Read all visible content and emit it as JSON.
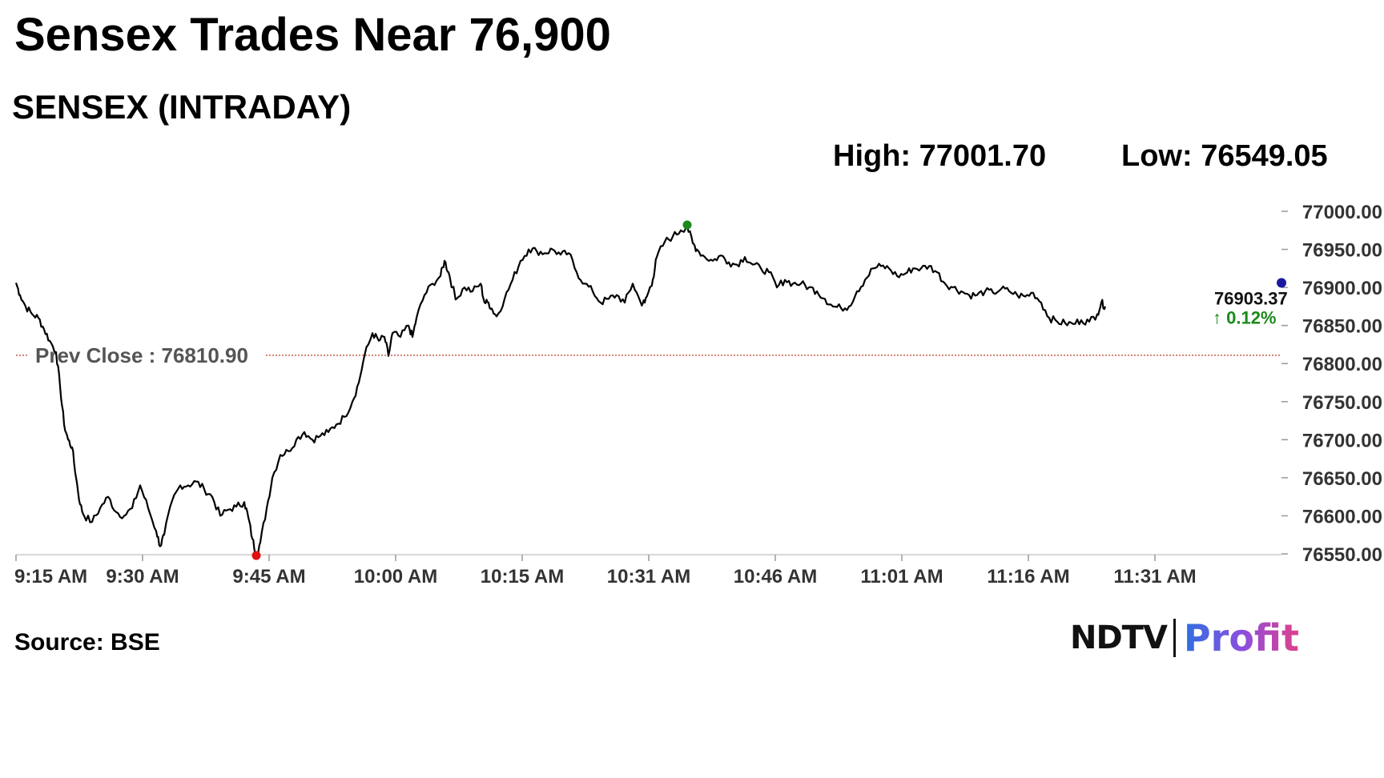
{
  "headline": "Sensex Trades Near 76,900",
  "subtitle": "SENSEX (INTRADAY)",
  "stats": {
    "high": "High: 77001.70",
    "low": "Low: 76549.05"
  },
  "source": "Source: BSE",
  "logo": {
    "ndtv": "NDTV",
    "profit": "Profit"
  },
  "chart_data": {
    "type": "line",
    "title": "SENSEX (INTRADAY)",
    "x_tick_labels": [
      "9:15 AM",
      "9:30 AM",
      "9:45 AM",
      "10:00 AM",
      "10:15 AM",
      "10:31 AM",
      "10:46 AM",
      "11:01 AM",
      "11:16 AM",
      "11:31 AM"
    ],
    "y_tick_labels": [
      "77000.00",
      "76950.00",
      "76900.00",
      "76850.00",
      "76800.00",
      "76750.00",
      "76700.00",
      "76650.00",
      "76600.00",
      "76550.00"
    ],
    "ylim": [
      76550,
      77000
    ],
    "reference_line": {
      "label": "Prev Close : 76810.90",
      "value": 76810.9,
      "color": "#c0392b"
    },
    "last_value_label": "76903.37",
    "change_label": "↑ 0.12%",
    "grid": false,
    "line_color": "#000000",
    "high_marker": {
      "value": 76980,
      "color": "#1a8a1a"
    },
    "low_marker": {
      "value": 76551,
      "color": "#e01010"
    },
    "current_marker_color": "#1a1aa0",
    "change_color": "#1a8a1a",
    "series": [
      {
        "values": [
          [
            0,
            76906
          ],
          [
            0.5,
            76890
          ],
          [
            1.2,
            76875
          ],
          [
            2,
            76865
          ],
          [
            2.8,
            76860
          ],
          [
            3.5,
            76845
          ],
          [
            4.2,
            76830
          ],
          [
            5,
            76815
          ],
          [
            5.5,
            76770
          ],
          [
            6,
            76720
          ],
          [
            6.5,
            76700
          ],
          [
            7,
            76690
          ],
          [
            7.5,
            76650
          ],
          [
            8,
            76615
          ],
          [
            8.5,
            76600
          ],
          [
            9.5,
            76592
          ],
          [
            10.5,
            76610
          ],
          [
            11.5,
            76625
          ],
          [
            12.5,
            76605
          ],
          [
            13.5,
            76600
          ],
          [
            14.5,
            76610
          ],
          [
            15.5,
            76640
          ],
          [
            16.5,
            76610
          ],
          [
            17.5,
            76580
          ],
          [
            18,
            76560
          ],
          [
            18.5,
            76575
          ],
          [
            19.5,
            76620
          ],
          [
            20.5,
            76640
          ],
          [
            21.5,
            76640
          ],
          [
            22.5,
            76645
          ],
          [
            23.5,
            76635
          ],
          [
            24.5,
            76625
          ],
          [
            25.5,
            76600
          ],
          [
            26.5,
            76608
          ],
          [
            27.5,
            76612
          ],
          [
            28.5,
            76618
          ],
          [
            29,
            76598
          ],
          [
            29.5,
            76570
          ],
          [
            30,
            76549
          ],
          [
            30.5,
            76565
          ],
          [
            31.3,
            76610
          ],
          [
            32,
            76650
          ],
          [
            33,
            76680
          ],
          [
            34,
            76685
          ],
          [
            35,
            76700
          ],
          [
            36,
            76710
          ],
          [
            37,
            76700
          ],
          [
            38,
            76705
          ],
          [
            39,
            76710
          ],
          [
            40,
            76720
          ],
          [
            41,
            76730
          ],
          [
            42,
            76750
          ],
          [
            42.8,
            76775
          ],
          [
            43.5,
            76810
          ],
          [
            44.5,
            76840
          ],
          [
            45.3,
            76830
          ],
          [
            46,
            76835
          ],
          [
            46.5,
            76810
          ],
          [
            47,
            76840
          ],
          [
            48,
            76835
          ],
          [
            49,
            76850
          ],
          [
            49.5,
            76835
          ],
          [
            50,
            76860
          ],
          [
            51,
            76890
          ],
          [
            52,
            76905
          ],
          [
            53,
            76915
          ],
          [
            53.5,
            76935
          ],
          [
            54,
            76920
          ],
          [
            54.5,
            76900
          ],
          [
            55,
            76885
          ],
          [
            56,
            76900
          ],
          [
            57,
            76895
          ],
          [
            58,
            76905
          ],
          [
            58.5,
            76880
          ],
          [
            59,
            76880
          ],
          [
            59.5,
            76870
          ],
          [
            60,
            76862
          ],
          [
            61,
            76885
          ],
          [
            62,
            76910
          ],
          [
            63,
            76935
          ],
          [
            64,
            76950
          ],
          [
            65,
            76948
          ],
          [
            66,
            76945
          ],
          [
            67,
            76950
          ],
          [
            68,
            76943
          ],
          [
            69,
            76945
          ],
          [
            70,
            76920
          ],
          [
            71,
            76905
          ],
          [
            72,
            76895
          ],
          [
            73,
            76880
          ],
          [
            74,
            76885
          ],
          [
            75,
            76890
          ],
          [
            76,
            76880
          ],
          [
            77,
            76905
          ],
          [
            78,
            76880
          ],
          [
            78.5,
            76880
          ],
          [
            79,
            76895
          ],
          [
            79.5,
            76910
          ],
          [
            80,
            76940
          ],
          [
            81,
            76960
          ],
          [
            82,
            76967
          ],
          [
            83,
            76975
          ],
          [
            83.8,
            76980
          ],
          [
            84.5,
            76958
          ],
          [
            85,
            76950
          ],
          [
            86,
            76940
          ],
          [
            87,
            76935
          ],
          [
            88,
            76942
          ],
          [
            89,
            76933
          ],
          [
            90,
            76930
          ],
          [
            91,
            76940
          ],
          [
            92,
            76930
          ],
          [
            93,
            76925
          ],
          [
            94,
            76920
          ],
          [
            95,
            76900
          ],
          [
            96,
            76910
          ],
          [
            97,
            76905
          ],
          [
            98,
            76905
          ],
          [
            99,
            76900
          ],
          [
            100,
            76895
          ],
          [
            101,
            76885
          ],
          [
            102,
            76875
          ],
          [
            103,
            76873
          ],
          [
            104,
            76875
          ],
          [
            105,
            76895
          ],
          [
            106,
            76910
          ],
          [
            107,
            76925
          ],
          [
            108,
            76928
          ],
          [
            109,
            76925
          ],
          [
            110,
            76915
          ],
          [
            111,
            76918
          ],
          [
            112,
            76925
          ],
          [
            113,
            76925
          ],
          [
            114,
            76928
          ],
          [
            115,
            76920
          ],
          [
            116,
            76905
          ],
          [
            117,
            76900
          ],
          [
            118,
            76895
          ],
          [
            119,
            76890
          ],
          [
            120,
            76890
          ],
          [
            121,
            76895
          ],
          [
            122,
            76893
          ],
          [
            123,
            76898
          ],
          [
            124,
            76895
          ],
          [
            125,
            76890
          ],
          [
            126,
            76888
          ],
          [
            127,
            76893
          ],
          [
            128,
            76880
          ],
          [
            129,
            76860
          ],
          [
            130,
            76855
          ],
          [
            131,
            76853
          ],
          [
            132,
            76852
          ],
          [
            133,
            76857
          ],
          [
            134,
            76855
          ],
          [
            135,
            76865
          ],
          [
            135.5,
            76880
          ],
          [
            136,
            76875
          ]
        ]
      }
    ]
  }
}
